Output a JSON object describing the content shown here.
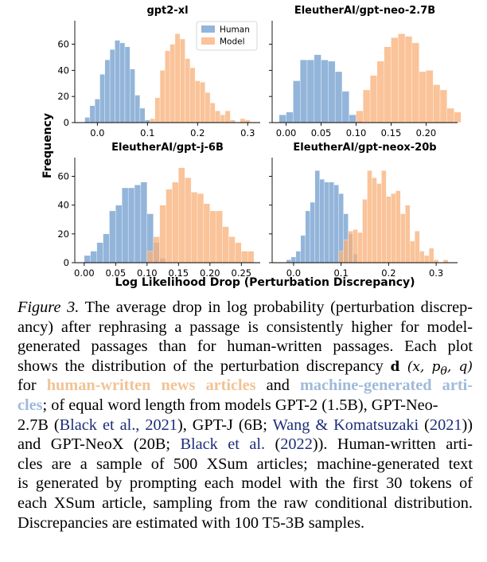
{
  "chart_data": [
    {
      "type": "histogram",
      "title": "gpt2-xl",
      "xticks": [
        0.0,
        0.1,
        0.2,
        0.3
      ],
      "yticks": [
        0,
        20,
        40,
        60
      ],
      "xlim": [
        -0.045,
        0.325
      ],
      "ylim": [
        0,
        78
      ],
      "legend": {
        "placement": "top-right"
      },
      "series": [
        {
          "name": "Human",
          "color": "#92b4d9",
          "bin_start": -0.025,
          "bin_width": 0.01,
          "values": [
            4,
            13,
            18,
            37,
            48,
            56,
            63,
            61,
            58,
            41,
            21,
            11,
            2
          ]
        },
        {
          "name": "Model",
          "color": "#f8b27c",
          "bin_start": 0.105,
          "bin_width": 0.01,
          "values": [
            3,
            19,
            40,
            55,
            60,
            68,
            64,
            49,
            42,
            32,
            31,
            23,
            15,
            9,
            6,
            9,
            2,
            0,
            3,
            2
          ]
        }
      ]
    },
    {
      "type": "histogram",
      "title": "EleutherAI/gpt-neo-2.7B",
      "xticks": [
        0.0,
        0.05,
        0.1,
        0.15,
        0.2
      ],
      "yticks": [
        0,
        20,
        40,
        60
      ],
      "xlim": [
        -0.02,
        0.245
      ],
      "ylim": [
        0,
        78
      ],
      "series": [
        {
          "name": "Human",
          "color": "#92b4d9",
          "bin_start": -0.01,
          "bin_width": 0.01,
          "values": [
            6,
            8,
            32,
            48,
            48,
            52,
            48,
            47,
            39,
            24,
            6,
            1
          ]
        },
        {
          "name": "Model",
          "color": "#f8b27c",
          "bin_start": 0.1,
          "bin_width": 0.01,
          "values": [
            9,
            25,
            36,
            47,
            58,
            65,
            68,
            66,
            61,
            39,
            40,
            29,
            25,
            11,
            8
          ]
        }
      ]
    },
    {
      "type": "histogram",
      "title": "EleutherAI/gpt-j-6B",
      "xticks": [
        0.0,
        0.05,
        0.1,
        0.15,
        0.2,
        0.25
      ],
      "yticks": [
        0,
        20,
        40,
        60
      ],
      "xlim": [
        -0.015,
        0.28
      ],
      "ylim": [
        0,
        73
      ],
      "series": [
        {
          "name": "Human",
          "color": "#92b4d9",
          "bin_start": 0.0,
          "bin_width": 0.01,
          "values": [
            5,
            8,
            14,
            20,
            36,
            40,
            52,
            52,
            54,
            56,
            34,
            14,
            3
          ]
        },
        {
          "name": "Model",
          "color": "#f8b27c",
          "bin_start": 0.1,
          "bin_width": 0.01,
          "values": [
            8,
            18,
            40,
            51,
            56,
            66,
            59,
            49,
            48,
            41,
            36,
            36,
            25,
            18,
            14,
            8,
            8
          ]
        }
      ]
    },
    {
      "type": "histogram",
      "title": "EleutherAI/gpt-neox-20b",
      "xticks": [
        0.0,
        0.1,
        0.2,
        0.3
      ],
      "yticks": [
        0,
        20,
        40,
        60
      ],
      "xlim": [
        -0.045,
        0.345
      ],
      "ylim": [
        0,
        73
      ],
      "series": [
        {
          "name": "Human",
          "color": "#92b4d9",
          "bin_start": -0.015,
          "bin_width": 0.01,
          "values": [
            2,
            4,
            8,
            19,
            36,
            42,
            64,
            58,
            56,
            56,
            54,
            48,
            34,
            20,
            6
          ]
        },
        {
          "name": "Model",
          "color": "#f8b27c",
          "bin_start": 0.095,
          "bin_width": 0.01,
          "values": [
            8,
            16,
            22,
            23,
            21,
            44,
            64,
            59,
            55,
            64,
            46,
            48,
            50,
            34,
            40,
            15,
            22,
            8,
            5,
            10,
            2,
            0,
            2
          ]
        }
      ]
    }
  ],
  "axes": {
    "ylabel": "Frequency",
    "xlabel": "Log Likelihood Drop (Perturbation Discrepancy)"
  },
  "caption": {
    "label": "Figure 3.",
    "l1_rest": "The average drop in log probability (perturbation discrep-",
    "l2": "ancy) after rephrasing a passage is consistently higher for model-",
    "l3": "generated passages than for human-written passages. Each plot",
    "l4_pre": "shows the distribution of the perturbation discrepancy",
    "l4_math_bold": "d",
    "l4_math_rest": "(x, p",
    "l4_math_sub": "θ",
    "l4_math_end": ", q)",
    "l5_for": "for",
    "l5_human": "human-written news articles",
    "l5_and": "and",
    "l5_machine": "machine-generated arti-",
    "l6_machine": "cles",
    "l6_rest": "; of equal word length from models GPT-2 (1.5B), GPT-Neo-",
    "l7_pre": "2.7B (",
    "l7_cite1": "Black et al., 2021",
    "l7_mid": "), GPT-J (6B;",
    "l7_cite2": "Wang & Komatsuzaki",
    "l7_paren_open": "(",
    "l7_cite2_year": "2021",
    "l7_end": "))",
    "l8_pre": "and GPT-NeoX (20B;",
    "l8_cite3": "Black et al.",
    "l8_paren_open": "(",
    "l8_cite3_year": "2022",
    "l8_end": ")). Human-written arti-",
    "l9": "cles are a sample of 500 XSum articles; machine-generated text",
    "l10": "is generated by prompting each model with the first 30 tokens of",
    "l11": "each XSum article, sampling from the raw conditional distribution.",
    "l12": "Discrepancies are estimated with 100 T5-3B samples."
  }
}
